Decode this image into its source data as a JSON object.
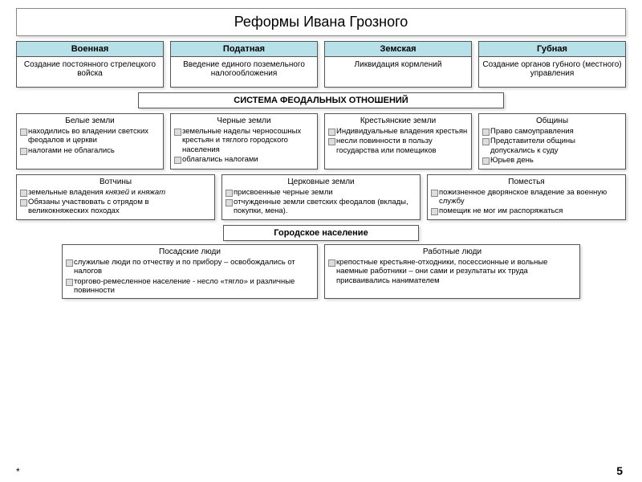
{
  "title": "Реформы Ивана Грозного",
  "reforms": [
    {
      "head": "Военная",
      "body": "Создание постоянного стрелецкого войска"
    },
    {
      "head": "Податная",
      "body": "Введение единого поземельного налогообложения"
    },
    {
      "head": "Земская",
      "body": "Ликвидация кормлений"
    },
    {
      "head": "Губная",
      "body": "Создание органов губного (местного) управления"
    }
  ],
  "feudal_header": "СИСТЕМА ФЕОДАЛЬНЫХ ОТНОШЕНИЙ",
  "feudal_row1": [
    {
      "head": "Белые земли",
      "items": [
        "находились во владении светских феодалов и церкви",
        "налогами не облагались"
      ]
    },
    {
      "head": "Черные земли",
      "items": [
        "земельные наделы черносошных крестьян и тяглого городского населения",
        "облагались налогами"
      ]
    },
    {
      "head": "Крестьянские земли",
      "items": [
        "Индивидуальные владения крестьян",
        "несли повинности в пользу государства или помещиков"
      ]
    },
    {
      "head": "Общины",
      "items": [
        "Право самоуправления",
        "Представители общины допускались к суду",
        "Юрьев день"
      ]
    }
  ],
  "feudal_row2": [
    {
      "head": "Вотчины",
      "items_html": [
        "земельные владения <em class=\"i\">князей</em> и <em class=\"i\">княжат</em>",
        "Обязаны участвовать с отрядом в великокняжеских походах"
      ]
    },
    {
      "head": "Церковные земли",
      "items": [
        "присвоенные черные земли",
        "отчужденные земли светских феодалов (вклады, покупки, мена)."
      ]
    },
    {
      "head": "Поместья",
      "items": [
        "пожизненное дворянское владение за военную службу",
        "помещик не мог им распоряжаться"
      ]
    }
  ],
  "city_header": "Городское население",
  "city_row": [
    {
      "head": "Посадские люди",
      "items": [
        "служилые люди по отчеству и по прибору – освобождались от налогов",
        "торгово-ремесленное население - несло «тягло» и различные повинности"
      ]
    },
    {
      "head": "Работные люди",
      "items": [
        "крепостные крестьяне-отходники, посессионные и вольные наемные работники – они сами и результаты их труда присваивались нанимателем"
      ]
    }
  ],
  "pagenum": "5",
  "asterisk": "*",
  "colors": {
    "reform_head_bg": "#b8e0e8",
    "border": "#555555",
    "shadow": "rgba(0,0,0,0.15)"
  }
}
